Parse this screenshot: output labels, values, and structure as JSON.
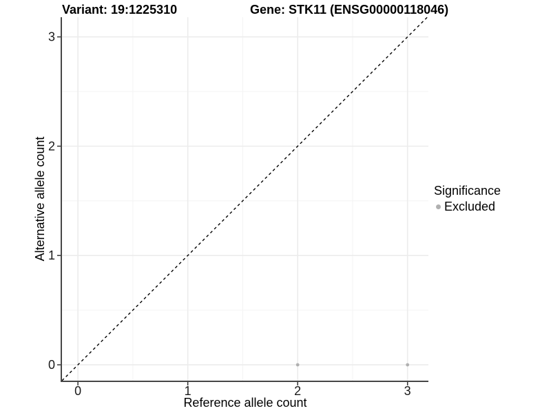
{
  "title": {
    "variant": "Variant: 19:1225310",
    "gene": "Gene: STK11 (ENSG00000118046)"
  },
  "legend": {
    "title": "Significance",
    "items": [
      {
        "label": "Excluded",
        "color": "#b0b0b0"
      }
    ]
  },
  "chart_data": {
    "type": "scatter",
    "titles": [
      "Variant: 19:1225310",
      "Gene: STK11 (ENSG00000118046)"
    ],
    "xlabel": "Reference allele count",
    "ylabel": "Alternative allele count",
    "xlim": [
      -0.145,
      3.19
    ],
    "ylim": [
      -0.145,
      3.18
    ],
    "xticks": [
      0,
      1,
      2,
      3
    ],
    "yticks": [
      0,
      1,
      2,
      3
    ],
    "x_minor_gridlines": [
      0.5,
      1.5,
      2.5
    ],
    "y_minor_gridlines": [
      0.5,
      1.5,
      2.5
    ],
    "grid": "major+minor",
    "legend_position": "right",
    "legend_title": "Significance",
    "identity_line": {
      "type": "y=x",
      "style": "dashed",
      "color": "#000000"
    },
    "series": [
      {
        "name": "Excluded",
        "color": "#b0b0b0",
        "points": [
          [
            2,
            0
          ],
          [
            3,
            0
          ]
        ]
      }
    ]
  },
  "colors": {
    "background": "#ffffff",
    "axis_line": "#464646",
    "tick_mark": "#333333",
    "grid_major": "#ececec",
    "grid_minor": "#f5f5f5",
    "tick_text": "#1a1a1a",
    "point_excluded": "#b0b0b0"
  }
}
